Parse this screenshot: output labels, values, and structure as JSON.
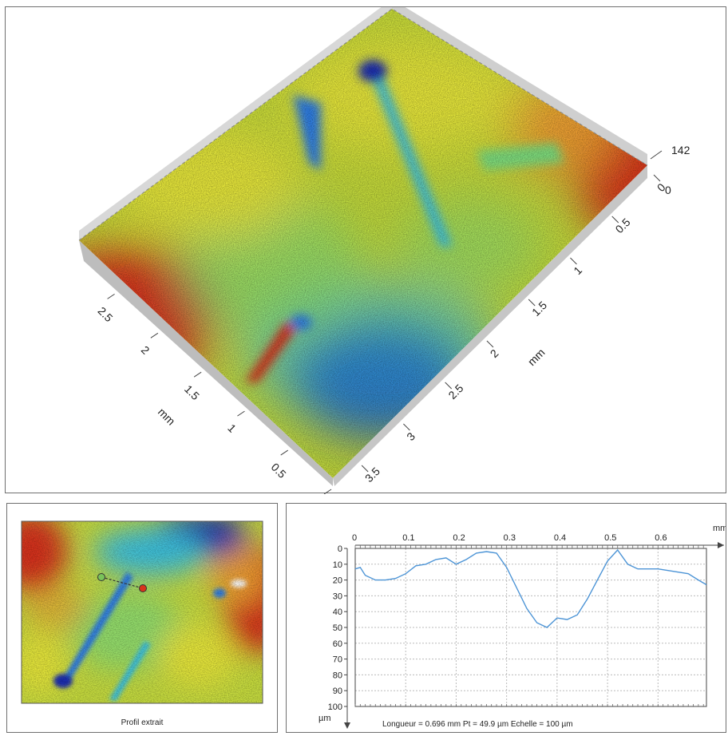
{
  "chart_data": [
    {
      "type": "heatmap",
      "view": "3d-surface",
      "z_max_label": "142",
      "z_min_label": "0",
      "x_axis": {
        "label": "mm",
        "ticks": [
          "0",
          "0.5",
          "1",
          "1.5",
          "2",
          "2.5",
          "3",
          "3.5"
        ]
      },
      "y_axis": {
        "label": "mm",
        "ticks": [
          "0",
          "0.5",
          "1",
          "1.5",
          "2",
          "2.5"
        ]
      },
      "colormap": [
        "#1b2fb4",
        "#2f7fe6",
        "#3cc3e0",
        "#7fe07f",
        "#e8e83a",
        "#f0a030",
        "#d8331b"
      ]
    },
    {
      "type": "heatmap",
      "view": "top-view",
      "caption": "Profil extrait"
    },
    {
      "type": "line",
      "x_unit": "mm",
      "y_unit": "µm",
      "x_ticks": [
        "0",
        "0.1",
        "0.2",
        "0.3",
        "0.4",
        "0.5",
        "0.6"
      ],
      "y_ticks": [
        "0",
        "10",
        "20",
        "30",
        "40",
        "50",
        "60",
        "70",
        "80",
        "90",
        "100"
      ],
      "xlim": [
        0,
        0.696
      ],
      "ylim": [
        0,
        100
      ],
      "y_inverted": true,
      "grid": true,
      "line_color": "#4c94d6",
      "x": [
        0,
        0.01,
        0.02,
        0.04,
        0.06,
        0.08,
        0.1,
        0.12,
        0.14,
        0.16,
        0.18,
        0.2,
        0.22,
        0.24,
        0.26,
        0.28,
        0.3,
        0.32,
        0.34,
        0.36,
        0.38,
        0.4,
        0.42,
        0.44,
        0.46,
        0.48,
        0.5,
        0.52,
        0.54,
        0.56,
        0.58,
        0.6,
        0.62,
        0.64,
        0.66,
        0.68,
        0.696
      ],
      "y": [
        13,
        12,
        17,
        20,
        20,
        19,
        16,
        11,
        10,
        7,
        6,
        10,
        7,
        3,
        2,
        3,
        12,
        25,
        38,
        47,
        50,
        44,
        45,
        42,
        32,
        20,
        8,
        1,
        10,
        13,
        13,
        13,
        14,
        15,
        16,
        20,
        23
      ],
      "footer": "Longueur = 0.696 mm  Pt = 49.9 µm  Echelle = 100 µm"
    }
  ]
}
